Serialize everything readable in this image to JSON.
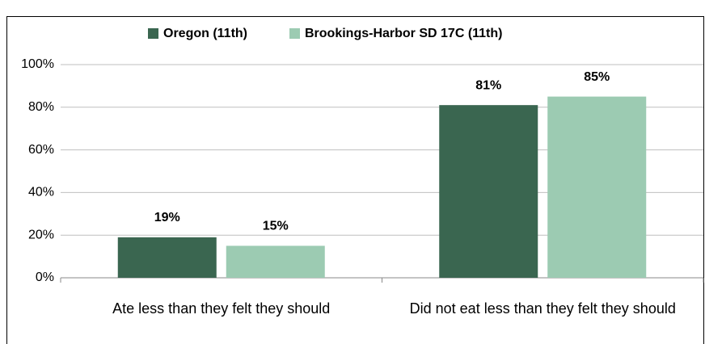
{
  "chart_data": {
    "type": "bar",
    "categories": [
      "Ate less than they felt they should",
      "Did not eat less than they felt they should"
    ],
    "series": [
      {
        "name": "Oregon (11th)",
        "color": "#3a6650",
        "values": [
          19,
          81
        ],
        "value_labels": [
          "19%",
          "81%"
        ]
      },
      {
        "name": "Brookings-Harbor SD 17C (11th)",
        "color": "#9ccbb2",
        "values": [
          15,
          85
        ],
        "value_labels": [
          "15%",
          "85%"
        ]
      }
    ],
    "ylim": [
      0,
      100
    ],
    "yticks": [
      {
        "value": 0,
        "label": "0%"
      },
      {
        "value": 20,
        "label": "20%"
      },
      {
        "value": 40,
        "label": "40%"
      },
      {
        "value": 60,
        "label": "60%"
      },
      {
        "value": 80,
        "label": "80%"
      },
      {
        "value": 100,
        "label": "100%"
      }
    ],
    "grid": true,
    "legend": "top"
  }
}
